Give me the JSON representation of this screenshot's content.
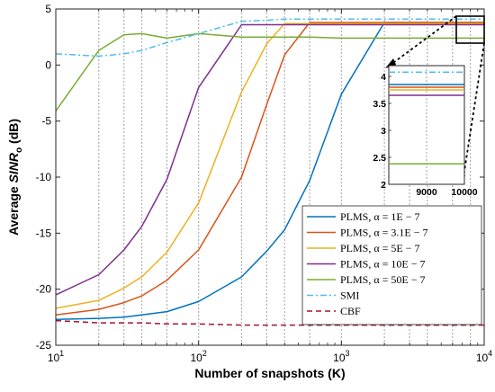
{
  "chart_data": {
    "type": "line",
    "xlabel": "Number of snapshots (K)",
    "ylabel": "Average SINR_o (dB)",
    "ylabel_parts": {
      "prefix": "Average ",
      "main": "SINR",
      "sub": "o",
      "suffix": " (dB)"
    },
    "xscale": "log",
    "xlim": [
      10,
      10000
    ],
    "ylim": [
      -25,
      5
    ],
    "x_ticks": [
      10,
      100,
      1000,
      10000
    ],
    "x_tick_labels": [
      {
        "base": "10",
        "exp": "1"
      },
      {
        "base": "10",
        "exp": "2"
      },
      {
        "base": "10",
        "exp": "3"
      },
      {
        "base": "10",
        "exp": "4"
      }
    ],
    "y_ticks": [
      -25,
      -20,
      -15,
      -10,
      -5,
      0,
      5
    ],
    "y_tick_labels": [
      "-25",
      "-20",
      "-15",
      "-10",
      "-5",
      "0",
      "5"
    ],
    "grid": "vertical dotted at snapshot values",
    "legend_position": "lower-right",
    "x": [
      10,
      20,
      30,
      40,
      60,
      100,
      200,
      300,
      400,
      600,
      1000,
      2000,
      3000,
      4000,
      6000,
      8000,
      10000
    ],
    "series": [
      {
        "name": "PLMS, α = 1E − 7",
        "color": "#0072BD",
        "dash": "solid",
        "values": [
          -22.7,
          -22.6,
          -22.5,
          -22.3,
          -22.0,
          -21.1,
          -18.9,
          -16.6,
          -14.7,
          -10.3,
          -2.6,
          3.8,
          3.8,
          3.8,
          3.8,
          3.8,
          3.8
        ]
      },
      {
        "name": "PLMS, α = 3.1E − 7",
        "color": "#D95319",
        "dash": "solid",
        "values": [
          -22.3,
          -21.8,
          -21.2,
          -20.6,
          -19.2,
          -16.5,
          -10.0,
          -3.5,
          0.9,
          3.8,
          3.8,
          3.8,
          3.8,
          3.8,
          3.8,
          3.8,
          3.8
        ]
      },
      {
        "name": "PLMS, α = 5E − 7",
        "color": "#EDB120",
        "dash": "solid",
        "values": [
          -21.7,
          -21.0,
          -19.9,
          -18.9,
          -16.7,
          -12.3,
          -2.4,
          1.9,
          3.7,
          3.7,
          3.7,
          3.7,
          3.7,
          3.7,
          3.7,
          3.7,
          3.7
        ]
      },
      {
        "name": "PLMS, α = 10E − 7",
        "color": "#7E2F8E",
        "dash": "solid",
        "values": [
          -20.5,
          -18.7,
          -16.5,
          -14.4,
          -10.2,
          -2.0,
          3.6,
          3.6,
          3.6,
          3.6,
          3.6,
          3.6,
          3.6,
          3.6,
          3.6,
          3.6,
          3.6
        ]
      },
      {
        "name": "PLMS, α = 50E − 7",
        "color": "#77AC30",
        "dash": "solid",
        "values": [
          -4.1,
          1.3,
          2.7,
          2.8,
          2.4,
          2.8,
          2.5,
          2.5,
          2.5,
          2.5,
          2.4,
          2.4,
          2.4,
          2.4,
          2.4,
          2.4,
          2.4
        ]
      },
      {
        "name": "SMI",
        "color": "#4DBEEE",
        "dash": "dashdot",
        "values": [
          1.0,
          0.8,
          1.0,
          1.3,
          2.0,
          2.8,
          3.9,
          4.0,
          4.1,
          4.1,
          4.1,
          4.1,
          4.1,
          4.1,
          4.1,
          4.1,
          4.1
        ]
      },
      {
        "name": "CBF",
        "color": "#A2142F",
        "dash": "dashed",
        "values": [
          -22.8,
          -23.0,
          -23.0,
          -23.0,
          -23.1,
          -23.1,
          -23.2,
          -23.2,
          -23.2,
          -23.2,
          -23.2,
          -23.2,
          -23.2,
          -23.2,
          -23.2,
          -23.2,
          -23.2
        ]
      }
    ],
    "inset": {
      "xlim": [
        8000,
        10000
      ],
      "ylim": [
        2,
        4.2
      ],
      "x_tick_labels": [
        "9000",
        "10000"
      ],
      "x_ticks": [
        9000,
        10000
      ],
      "y_ticks": [
        2,
        2.5,
        3,
        3.5,
        4
      ],
      "y_tick_labels": [
        "2",
        "2.5",
        "3",
        "3.5",
        "4"
      ],
      "series_values": [
        3.85,
        3.8,
        3.75,
        3.65,
        2.38,
        4.08,
        null
      ]
    }
  }
}
